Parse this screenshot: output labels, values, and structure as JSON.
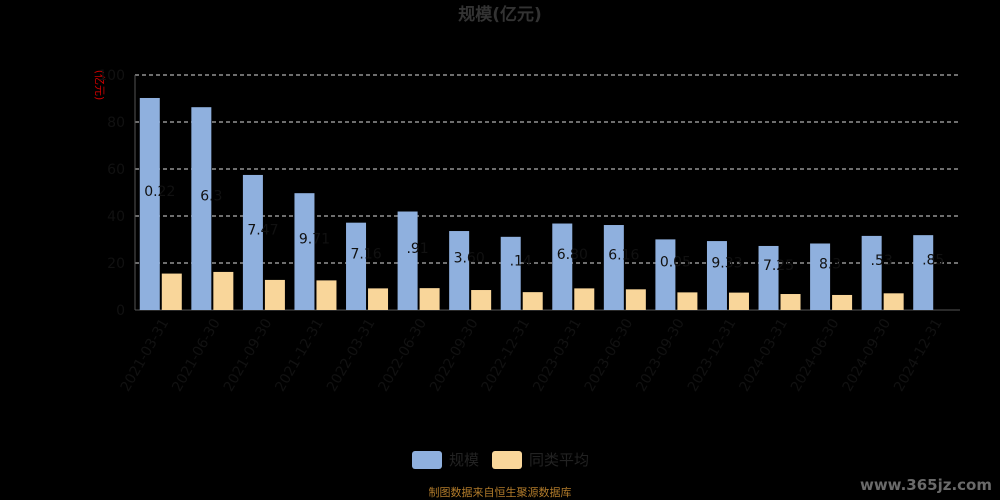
{
  "chart_data": {
    "type": "bar",
    "title": "规模(亿元)",
    "ylabel": "(亿元)",
    "ylim": [
      0,
      100
    ],
    "yticks": [
      0,
      20,
      40,
      60,
      80,
      100
    ],
    "grid": true,
    "categories": [
      "2021-03-31",
      "2021-06-30",
      "2021-09-30",
      "2021-12-31",
      "2022-03-31",
      "2022-06-30",
      "2022-09-30",
      "2022-12-31",
      "2023-03-31",
      "2023-06-30",
      "2023-09-30",
      "2023-12-31",
      "2024-03-31",
      "2024-06-30",
      "2024-09-30",
      "2024-12-31"
    ],
    "series": [
      {
        "name": "规模",
        "color": "#8fb0de",
        "values": [
          90.22,
          86.3,
          57.47,
          49.71,
          37.16,
          41.91,
          33.6,
          31.14,
          36.8,
          36.16,
          30.05,
          29.33,
          27.25,
          28.3,
          31.53,
          31.85
        ],
        "labels": [
          "0.22",
          "6.3",
          "7.47",
          "9.71",
          "7.16",
          ".91",
          "3.60",
          ".14",
          "6.80",
          "6.16",
          "0.05",
          "9.33",
          "7.25",
          "8.3",
          ".53",
          ".85"
        ]
      },
      {
        "name": "同类平均",
        "color": "#f9d69a",
        "values": [
          15.5,
          16.2,
          12.8,
          12.6,
          9.2,
          9.3,
          8.5,
          7.6,
          9.2,
          8.8,
          7.5,
          7.4,
          6.8,
          6.4,
          7.1,
          null
        ]
      }
    ],
    "legend": "bottom",
    "source": "制图数据来自恒生聚源数据库",
    "watermark": "www.365jz.com"
  }
}
